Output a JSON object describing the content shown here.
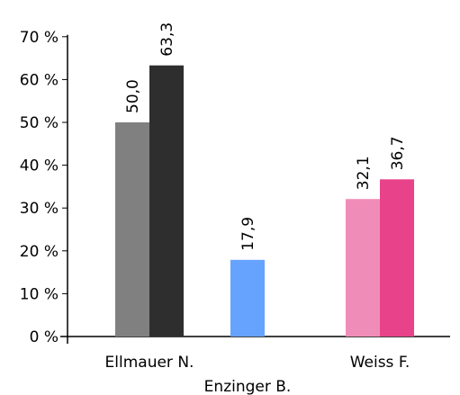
{
  "chart_data": {
    "type": "bar",
    "ylim": [
      0,
      70
    ],
    "yticks": [
      0,
      10,
      20,
      30,
      40,
      50,
      60,
      70
    ],
    "ytick_suffix": " %",
    "legend": false,
    "grid": false,
    "groups": [
      {
        "label": "Ellmauer N.",
        "bars": [
          {
            "value": 50.0,
            "label": "50,0",
            "color": "#808080"
          },
          {
            "value": 63.3,
            "label": "63,3",
            "color": "#2e2e2e"
          }
        ]
      },
      {
        "label": "Enzinger B.",
        "bars": [
          {
            "value": 17.9,
            "label": "17,9",
            "color": "#66a3ff"
          }
        ]
      },
      {
        "label": "Weiss F.",
        "bars": [
          {
            "value": 32.1,
            "label": "32,1",
            "color": "#f08cb8"
          },
          {
            "value": 36.7,
            "label": "36,7",
            "color": "#e8438a"
          }
        ]
      }
    ]
  }
}
